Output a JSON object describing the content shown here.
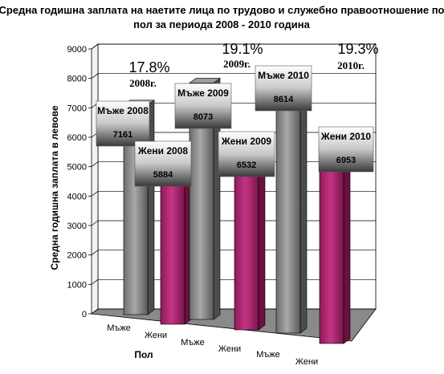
{
  "chart_data": {
    "type": "bar",
    "title": "Средна годишна заплата на наетите лица по трудово и служебно правоотношение по пол за периода 2008 - 2010 година",
    "title_lines": [
      "Средна годишна заплата на наетите лица по трудово и служебно правоотношение по",
      "пол за периода 2008 - 2010 година"
    ],
    "xlabel": "Пол",
    "ylabel": "Средна годишна заплата в левове",
    "ylim": [
      0,
      9000
    ],
    "yticks": [
      "0",
      "1000",
      "2000",
      "3000",
      "4000",
      "5000",
      "6000",
      "7000",
      "8000",
      "9000"
    ],
    "grid": true,
    "categories": [
      "Мъже",
      "Жени",
      "Мъже",
      "Жени",
      "Мъже",
      "Жени"
    ],
    "values": [
      7161,
      5884,
      8073,
      6532,
      8614,
      6953
    ],
    "data_labels": [
      "Мъже 2008",
      "Жени 2008",
      "Мъже 2009",
      "Жени 2009",
      "Мъже 2010",
      "Жени  2010"
    ],
    "value_labels": [
      "7161",
      "5884",
      "8073",
      "6532",
      "8614",
      "6953"
    ],
    "bar_colors": [
      "#8c8c8c",
      "#b0286e",
      "#8c8c8c",
      "#b0286e",
      "#8c8c8c",
      "#b0286e"
    ],
    "annotations": [
      {
        "percent": "17.8%",
        "year": "2008г."
      },
      {
        "percent": "19.1%",
        "year": "2009г."
      },
      {
        "percent": "19.3%",
        "year": "2010г."
      }
    ]
  },
  "colors": {
    "men": "#8c8c8c",
    "women": "#b0286e",
    "floor": "#8a8a8a",
    "wall": "#ffffff"
  }
}
